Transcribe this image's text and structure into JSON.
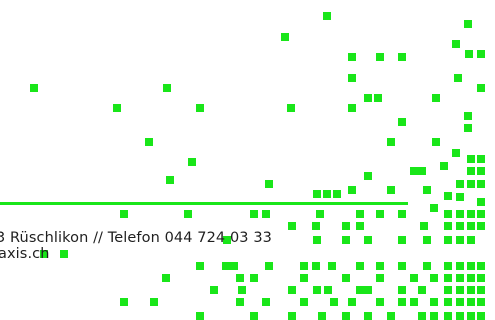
{
  "brand": {
    "accent_color": "#19e619"
  },
  "footer": {
    "address_line": "3 Rüschlikon // Telefon 044 724 03 33",
    "email_line": "axis.ch"
  },
  "decoration": {
    "icon": "green-pixel-mosaic"
  }
}
